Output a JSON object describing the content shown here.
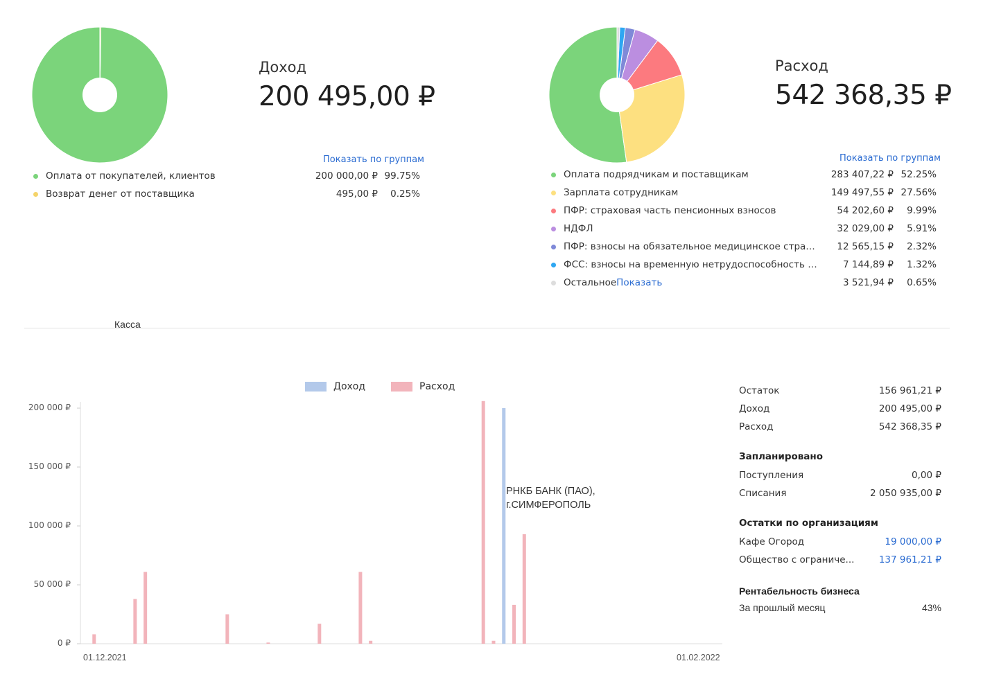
{
  "income": {
    "title": "Доход",
    "total": "200 495,00 ₽",
    "show_groups": "Показать по группам",
    "items": [
      {
        "name": "Оплата от покупателей, клиентов",
        "amount": "200 000,00 ₽",
        "percent": "99.75%",
        "value": 99.75,
        "color": "#7bd47b"
      },
      {
        "name": "Возврат денег от поставщика",
        "amount": "495,00 ₽",
        "percent": "0.25%",
        "value": 0.25,
        "color": "#f5d46a"
      }
    ]
  },
  "expense": {
    "title": "Расход",
    "total": "542 368,35 ₽",
    "show_groups": "Показать по группам",
    "items": [
      {
        "name": "Оплата подрядчикам и поставщикам",
        "amount": "283 407,22 ₽",
        "percent": "52.25%",
        "value": 52.25,
        "color": "#7bd47b"
      },
      {
        "name": "Зарплата сотрудникам",
        "amount": "149 497,55 ₽",
        "percent": "27.56%",
        "value": 27.56,
        "color": "#fde080"
      },
      {
        "name": "ПФР: страховая часть пенсионных взносов",
        "amount": "54 202,60 ₽",
        "percent": "9.99%",
        "value": 9.99,
        "color": "#fc7a7f"
      },
      {
        "name": "НДФЛ",
        "amount": "32 029,00 ₽",
        "percent": "5.91%",
        "value": 5.91,
        "color": "#bb8ee0"
      },
      {
        "name": "ПФР: взносы на обязательное медицинское страхова...",
        "amount": "12 565,15 ₽",
        "percent": "2.32%",
        "value": 2.32,
        "color": "#7f89d8"
      },
      {
        "name": "ФСС: взносы на временную нетрудоспособность и м...",
        "amount": "7 144,89 ₽",
        "percent": "1.32%",
        "value": 1.32,
        "color": "#2ea7f2"
      },
      {
        "name": "Остальное",
        "link": "Показать",
        "amount": "3 521,94 ₽",
        "percent": "0.65%",
        "value": 0.65,
        "color": "#dddddd"
      }
    ]
  },
  "section_title": "Касса",
  "chart_data": {
    "type": "bar",
    "series": [
      {
        "name": "Доход",
        "color": "#b3c9ea",
        "points": [
          {
            "x": "2022-01-11",
            "y": 200000
          }
        ]
      },
      {
        "name": "Расход",
        "color": "#f2b4bb",
        "points": [
          {
            "x": "2021-12-02",
            "y": 8000
          },
          {
            "x": "2021-12-06",
            "y": 38000
          },
          {
            "x": "2021-12-07",
            "y": 61000
          },
          {
            "x": "2021-12-15",
            "y": 25000
          },
          {
            "x": "2021-12-19",
            "y": 1000
          },
          {
            "x": "2021-12-24",
            "y": 17000
          },
          {
            "x": "2021-12-28",
            "y": 61000
          },
          {
            "x": "2021-12-29",
            "y": 2500
          },
          {
            "x": "2022-01-09",
            "y": 206000
          },
          {
            "x": "2022-01-10",
            "y": 2500
          },
          {
            "x": "2022-01-12",
            "y": 33000
          },
          {
            "x": "2022-01-13",
            "y": 93000
          }
        ]
      }
    ],
    "y_ticks": [
      "0 ₽",
      "50 000 ₽",
      "100 000 ₽",
      "150 000 ₽",
      "200 000 ₽"
    ],
    "y_tick_values": [
      0,
      50000,
      100000,
      150000,
      200000
    ],
    "x_labels": [
      "01.12.2021",
      "01.02.2022"
    ],
    "x_range": [
      "2021-12-01",
      "2022-02-01"
    ],
    "ylim": [
      0,
      200000
    ],
    "annotation": "РНКБ БАНК (ПАО),\nг.СИМФЕРОПОЛЬ",
    "annotation_lines": [
      "РНКБ БАНК (ПАО),",
      "г.СИМФЕРОПОЛЬ"
    ],
    "grid": false,
    "legend_position": "top"
  },
  "summary": {
    "balance_label": "Остаток",
    "balance": "156 961,21 ₽",
    "income_label": "Доход",
    "income": "200 495,00 ₽",
    "expense_label": "Расход",
    "expense": "542 368,35 ₽",
    "planned_title": "Запланировано",
    "receipts_label": "Поступления",
    "receipts": "0,00 ₽",
    "writeoffs_label": "Списания",
    "writeoffs": "2 050 935,00 ₽",
    "orgs_title": "Остатки по организациям",
    "orgs": [
      {
        "name": "Кафе Огород",
        "value": "19 000,00 ₽"
      },
      {
        "name": "Общество с ограниче...",
        "value": "137 961,21 ₽"
      }
    ],
    "profit_title": "Рентабельность бизнеса",
    "profit_label": "За прошлый месяц",
    "profit_value": "43%"
  }
}
